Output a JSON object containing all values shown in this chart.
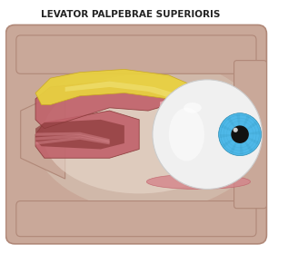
{
  "title": "LEVATOR PALPEBRAE SUPERIORIS",
  "title_fontsize": 7.5,
  "title_color": "#222222",
  "bg_color": "#ffffff",
  "skull_color": "#c9a899",
  "skull_dark": "#b08878",
  "skull_light": "#d4b8ab",
  "muscle_red": "#c0616a",
  "muscle_dark": "#8b3a3a",
  "muscle_light": "#d4848a",
  "tendon_yellow": "#e8d040",
  "tendon_light": "#f0e070",
  "eyeball_white": "#f0f0f0",
  "iris_blue": "#4eb8e8",
  "iris_dark": "#2a8ab0",
  "pupil_color": "#111111",
  "orbit_inner": "#d4c0b0"
}
